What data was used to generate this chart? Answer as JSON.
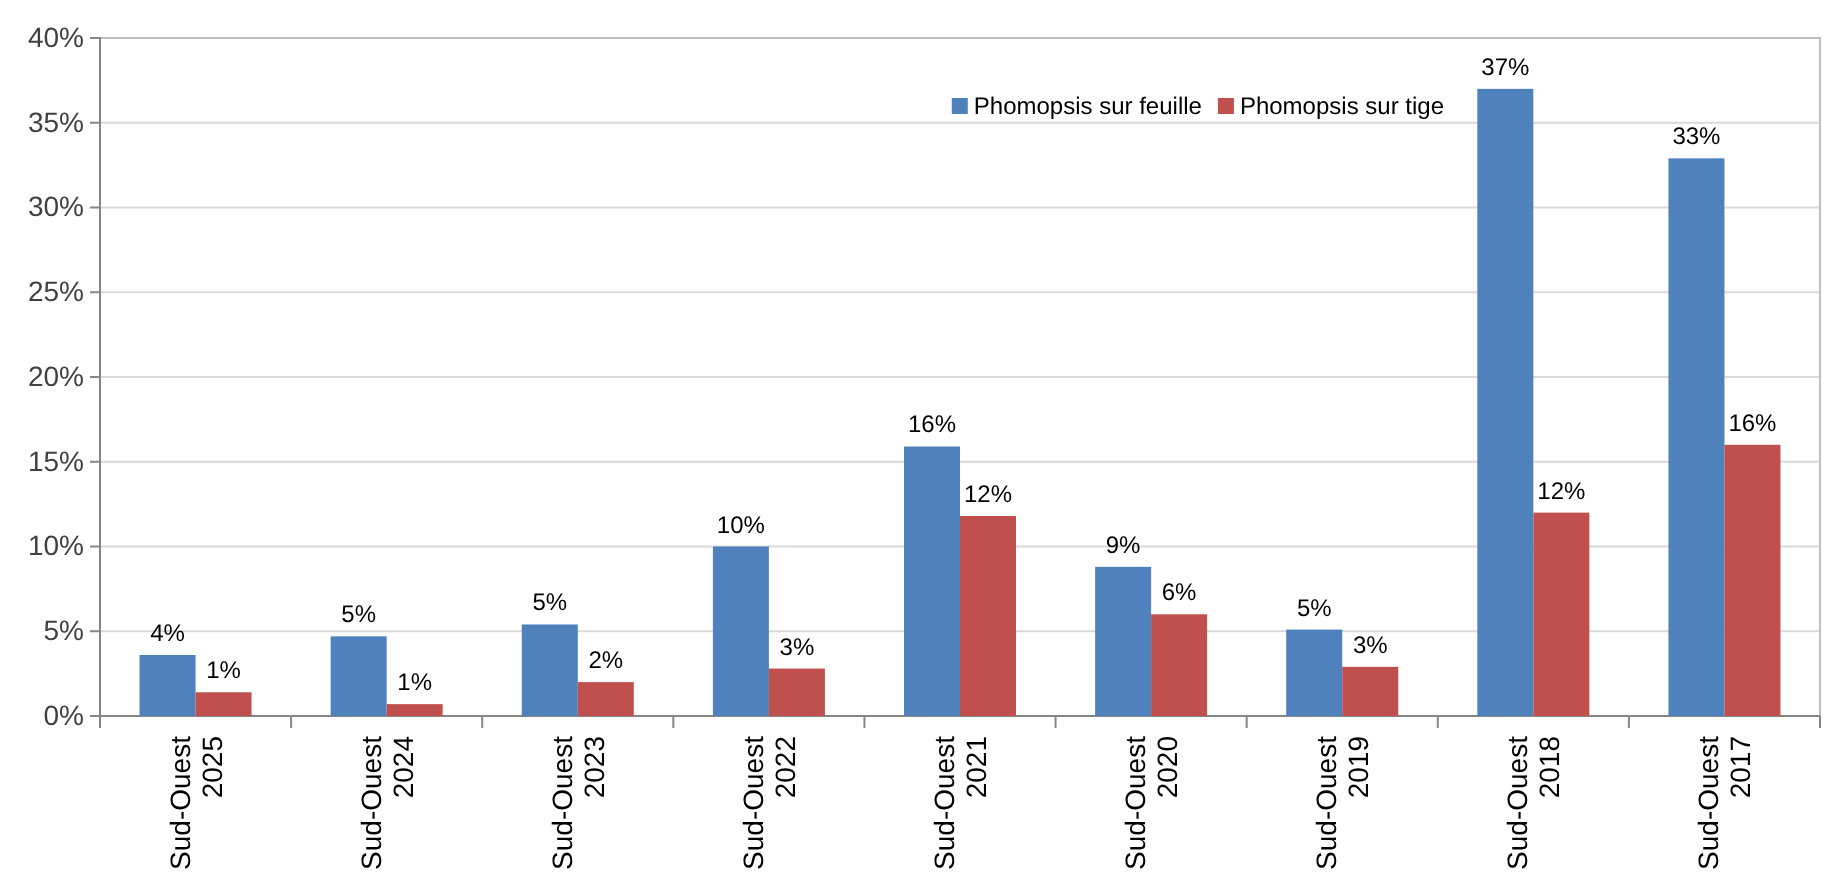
{
  "chart_data": {
    "type": "bar",
    "categories": [
      "Sud-Ouest 2025",
      "Sud-Ouest 2024",
      "Sud-Ouest 2023",
      "Sud-Ouest 2022",
      "Sud-Ouest 2021",
      "Sud-Ouest 2020",
      "Sud-Ouest 2019",
      "Sud-Ouest 2018",
      "Sud-Ouest 2017"
    ],
    "series": [
      {
        "name": "Phomopsis sur feuille",
        "color": "#4f81bd",
        "values": [
          3.6,
          4.7,
          5.4,
          10.0,
          15.9,
          8.8,
          5.1,
          37.0,
          32.9
        ],
        "value_labels": [
          "4%",
          "5%",
          "5%",
          "10%",
          "16%",
          "9%",
          "5%",
          "37%",
          "33%"
        ]
      },
      {
        "name": "Phomopsis sur tige",
        "color": "#c0504d",
        "values": [
          1.4,
          0.7,
          2.0,
          2.8,
          11.8,
          6.0,
          2.9,
          12.0,
          16.0
        ],
        "value_labels": [
          "1%",
          "1%",
          "2%",
          "3%",
          "12%",
          "6%",
          "3%",
          "12%",
          "16%"
        ]
      }
    ],
    "ylim": [
      0,
      40
    ],
    "yticks": [
      {
        "value": 0,
        "label": "0%"
      },
      {
        "value": 5,
        "label": "5%"
      },
      {
        "value": 10,
        "label": "10%"
      },
      {
        "value": 15,
        "label": "15%"
      },
      {
        "value": 20,
        "label": "20%"
      },
      {
        "value": 25,
        "label": "25%"
      },
      {
        "value": 30,
        "label": "30%"
      },
      {
        "value": 35,
        "label": "35%"
      },
      {
        "value": 40,
        "label": "40%"
      }
    ],
    "grid": "y",
    "legend": "top right"
  }
}
